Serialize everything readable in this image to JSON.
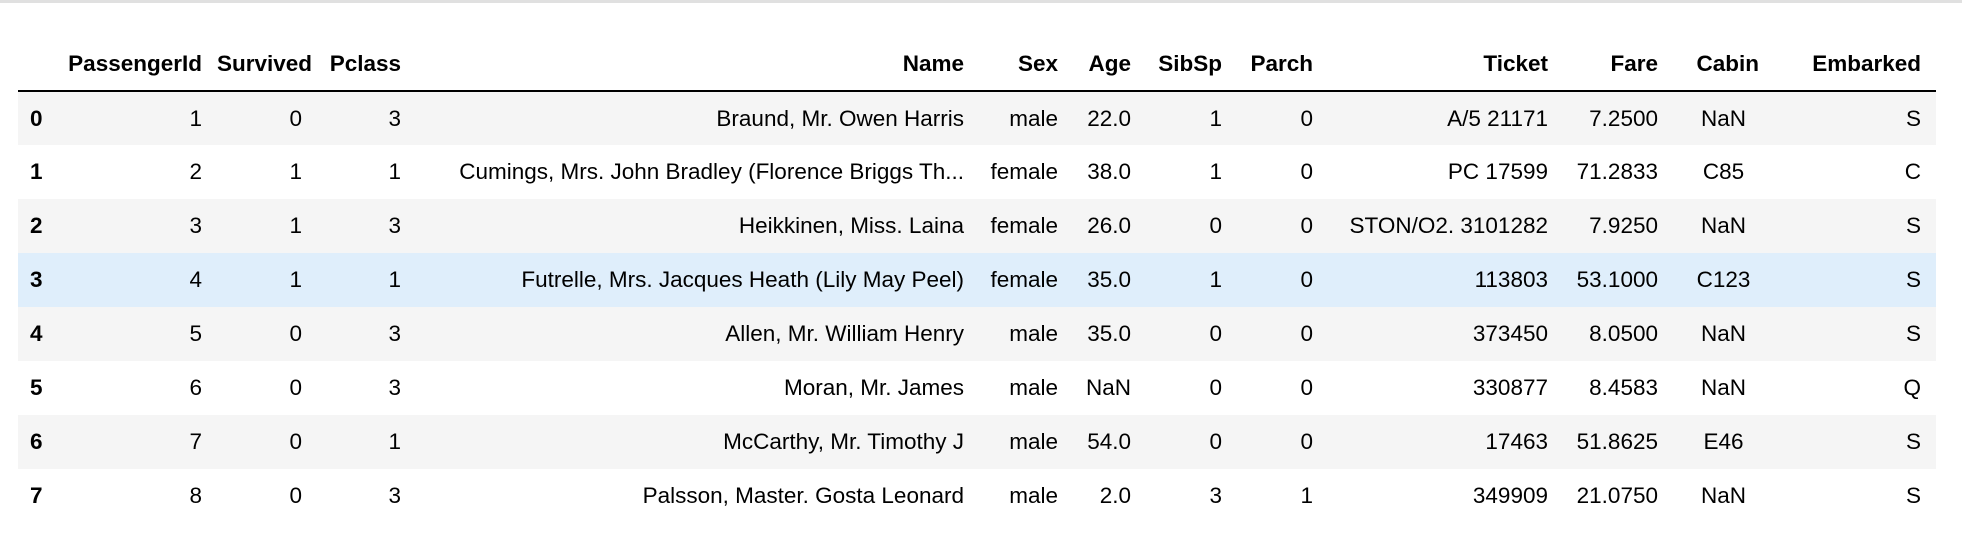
{
  "dataframe": {
    "columns": [
      "",
      "PassengerId",
      "Survived",
      "Pclass",
      "Name",
      "Sex",
      "Age",
      "SibSp",
      "Parch",
      "Ticket",
      "Fare",
      "Cabin",
      "Embarked"
    ],
    "rows": [
      {
        "index": "0",
        "PassengerId": "1",
        "Survived": "0",
        "Pclass": "3",
        "Name": "Braund, Mr. Owen Harris",
        "Sex": "male",
        "Age": "22.0",
        "SibSp": "1",
        "Parch": "0",
        "Ticket": "A/5 21171",
        "Fare": "7.2500",
        "Cabin": "NaN",
        "Embarked": "S"
      },
      {
        "index": "1",
        "PassengerId": "2",
        "Survived": "1",
        "Pclass": "1",
        "Name": "Cumings, Mrs. John Bradley (Florence Briggs Th...",
        "Sex": "female",
        "Age": "38.0",
        "SibSp": "1",
        "Parch": "0",
        "Ticket": "PC 17599",
        "Fare": "71.2833",
        "Cabin": "C85",
        "Embarked": "C"
      },
      {
        "index": "2",
        "PassengerId": "3",
        "Survived": "1",
        "Pclass": "3",
        "Name": "Heikkinen, Miss. Laina",
        "Sex": "female",
        "Age": "26.0",
        "SibSp": "0",
        "Parch": "0",
        "Ticket": "STON/O2. 3101282",
        "Fare": "7.9250",
        "Cabin": "NaN",
        "Embarked": "S"
      },
      {
        "index": "3",
        "PassengerId": "4",
        "Survived": "1",
        "Pclass": "1",
        "Name": "Futrelle, Mrs. Jacques Heath (Lily May Peel)",
        "Sex": "female",
        "Age": "35.0",
        "SibSp": "1",
        "Parch": "0",
        "Ticket": "113803",
        "Fare": "53.1000",
        "Cabin": "C123",
        "Embarked": "S"
      },
      {
        "index": "4",
        "PassengerId": "5",
        "Survived": "0",
        "Pclass": "3",
        "Name": "Allen, Mr. William Henry",
        "Sex": "male",
        "Age": "35.0",
        "SibSp": "0",
        "Parch": "0",
        "Ticket": "373450",
        "Fare": "8.0500",
        "Cabin": "NaN",
        "Embarked": "S"
      },
      {
        "index": "5",
        "PassengerId": "6",
        "Survived": "0",
        "Pclass": "3",
        "Name": "Moran, Mr. James",
        "Sex": "male",
        "Age": "NaN",
        "SibSp": "0",
        "Parch": "0",
        "Ticket": "330877",
        "Fare": "8.4583",
        "Cabin": "NaN",
        "Embarked": "Q"
      },
      {
        "index": "6",
        "PassengerId": "7",
        "Survived": "0",
        "Pclass": "1",
        "Name": "McCarthy, Mr. Timothy J",
        "Sex": "male",
        "Age": "54.0",
        "SibSp": "0",
        "Parch": "0",
        "Ticket": "17463",
        "Fare": "51.8625",
        "Cabin": "E46",
        "Embarked": "S"
      },
      {
        "index": "7",
        "PassengerId": "8",
        "Survived": "0",
        "Pclass": "3",
        "Name": "Palsson, Master. Gosta Leonard",
        "Sex": "male",
        "Age": "2.0",
        "SibSp": "3",
        "Parch": "1",
        "Ticket": "349909",
        "Fare": "21.0750",
        "Cabin": "NaN",
        "Embarked": "S"
      }
    ],
    "hovered_row": 3
  },
  "colors": {
    "stripe_odd": "#f5f5f5",
    "stripe_even": "#ffffff",
    "hover": "#dfeefb",
    "header_rule": "#000000"
  }
}
